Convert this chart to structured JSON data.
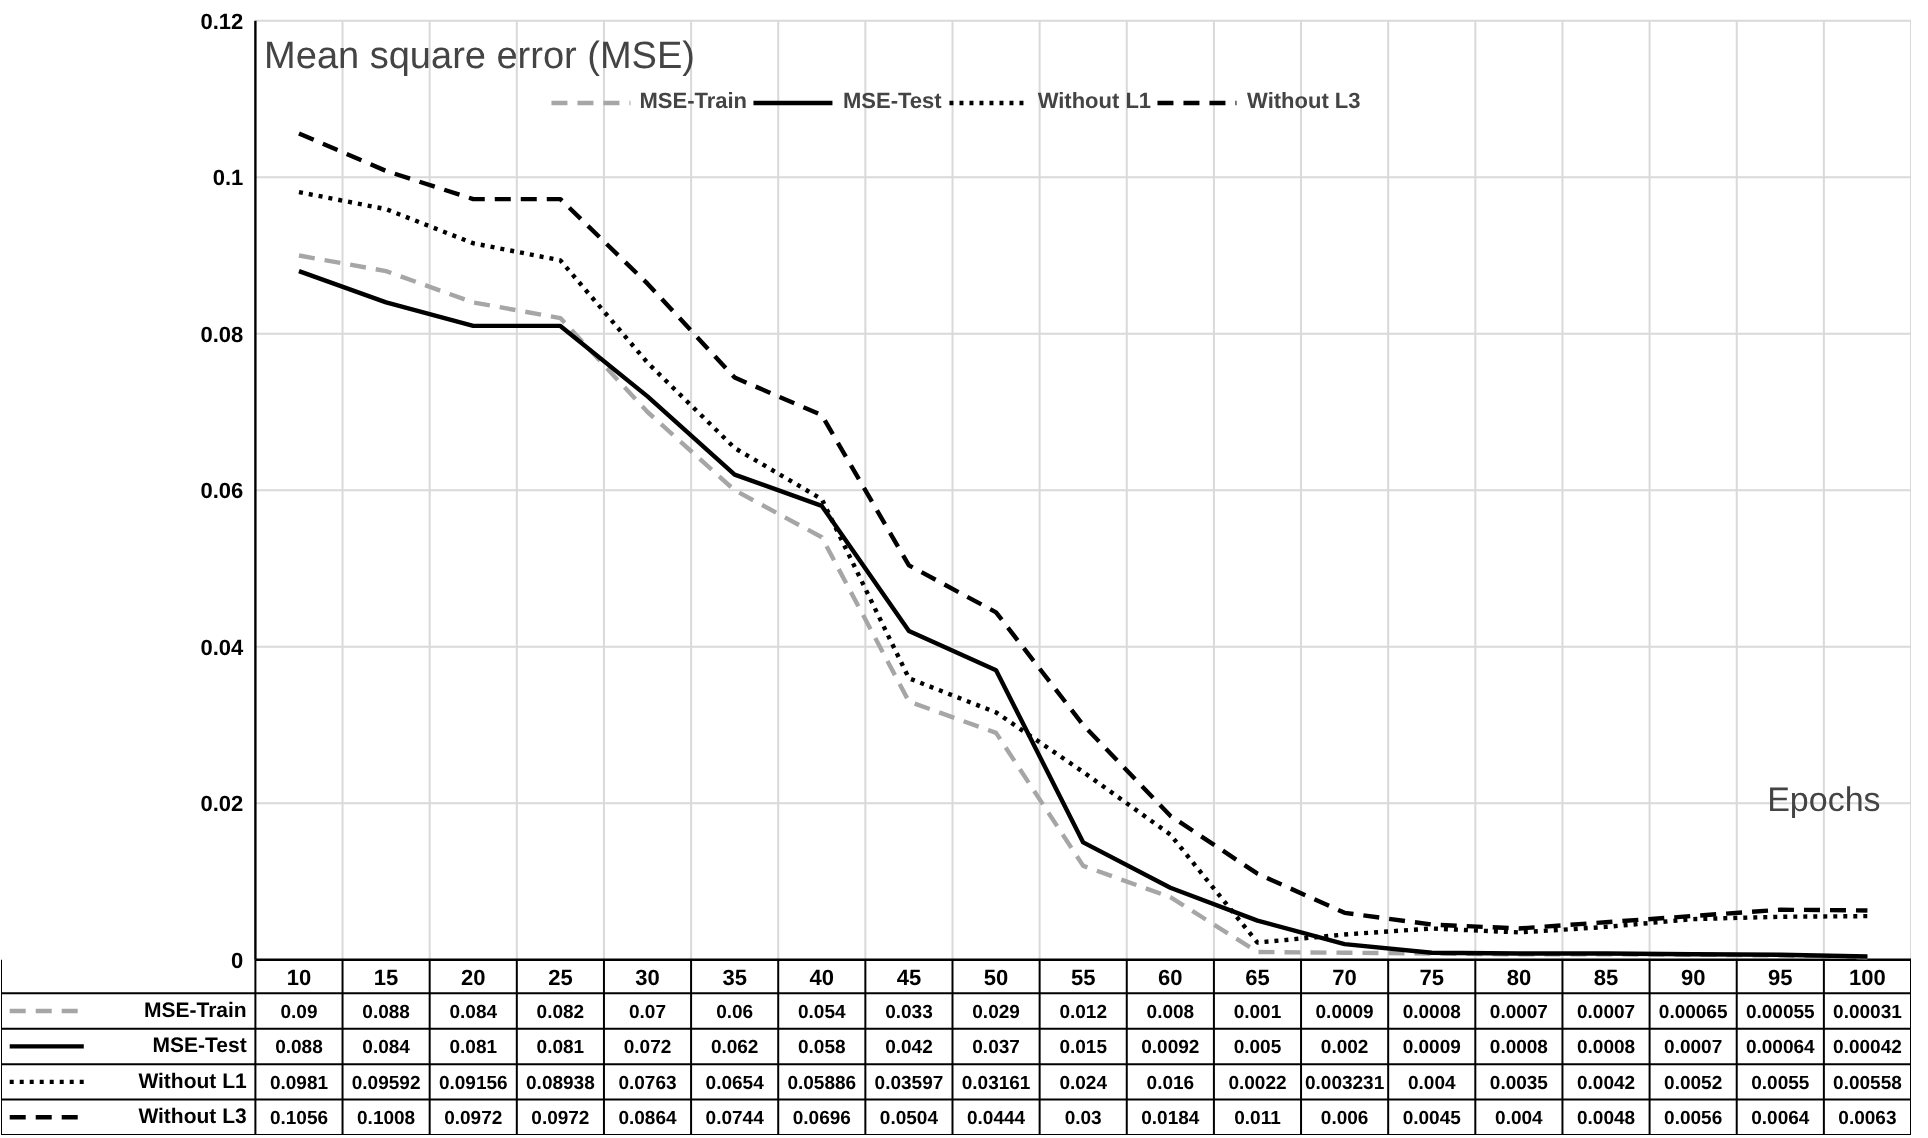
{
  "chart_data": {
    "type": "line",
    "annotations": [
      "Mean square error (MSE)"
    ],
    "xlabel": "Epochs",
    "categories": [
      "10",
      "15",
      "20",
      "25",
      "30",
      "35",
      "40",
      "45",
      "50",
      "55",
      "60",
      "65",
      "70",
      "75",
      "80",
      "85",
      "90",
      "95",
      "100"
    ],
    "ylim": [
      0,
      0.12
    ],
    "yticks": [
      0,
      0.02,
      0.04,
      0.06,
      0.08,
      0.1,
      0.12
    ],
    "grid": true,
    "legend": "top",
    "data_labels": true,
    "series": [
      {
        "name": "MSE-Train",
        "color": "#a6a6a6",
        "line_style": "dashed",
        "values": [
          0.09,
          0.088,
          0.084,
          0.082,
          0.07,
          0.06,
          0.054,
          0.033,
          0.029,
          0.012,
          0.008,
          0.001,
          0.0009,
          0.0008,
          0.0007,
          0.0007,
          0.00065,
          0.00055,
          0.00031
        ]
      },
      {
        "name": "MSE-Test",
        "color": "#000000",
        "line_style": "solid",
        "values": [
          0.088,
          0.084,
          0.081,
          0.081,
          0.072,
          0.062,
          0.058,
          0.042,
          0.037,
          0.015,
          0.0092,
          0.005,
          0.002,
          0.0009,
          0.0008,
          0.0008,
          0.0007,
          0.00064,
          0.00042
        ]
      },
      {
        "name": "Without L1",
        "color": "#000000",
        "line_style": "dotted",
        "values": [
          0.0981,
          0.09592,
          0.09156,
          0.08938,
          0.0763,
          0.0654,
          0.05886,
          0.03597,
          0.03161,
          0.024,
          0.016,
          0.0022,
          0.003231,
          0.004,
          0.0035,
          0.0042,
          0.0052,
          0.0055,
          0.00558
        ]
      },
      {
        "name": "Without L3",
        "color": "#000000",
        "line_style": "dashed",
        "values": [
          0.1056,
          0.1008,
          0.0972,
          0.0972,
          0.0864,
          0.0744,
          0.0696,
          0.0504,
          0.0444,
          0.03,
          0.0184,
          0.011,
          0.006,
          0.0045,
          0.004,
          0.0048,
          0.0056,
          0.0064,
          0.0063
        ]
      }
    ]
  }
}
